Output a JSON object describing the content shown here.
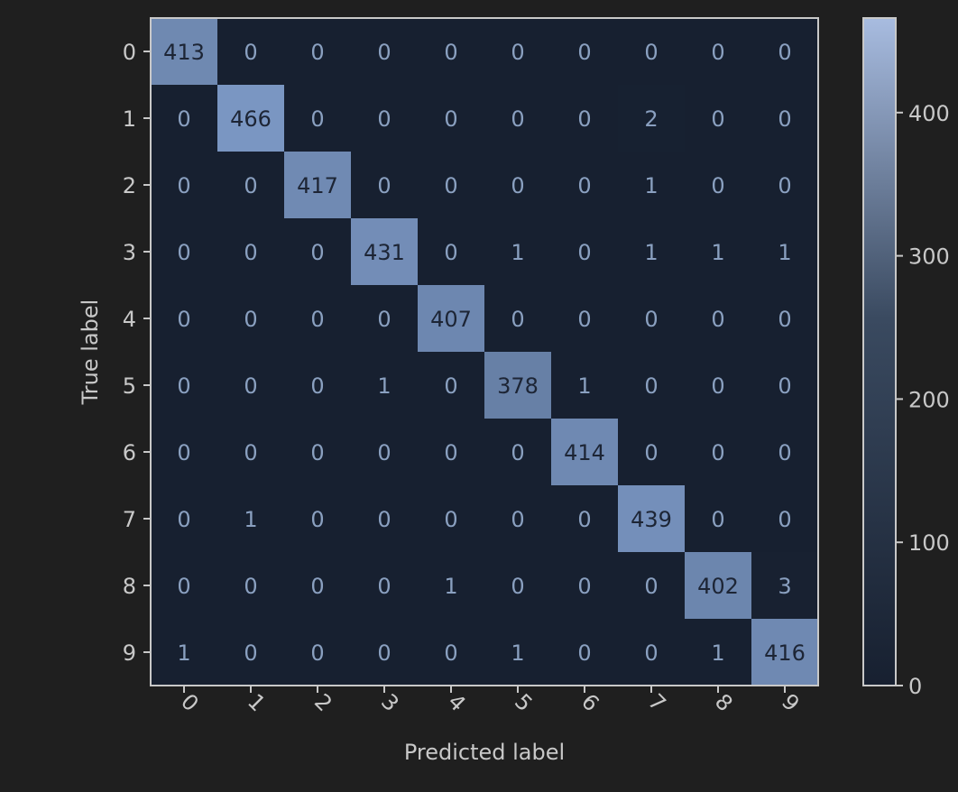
{
  "chart_data": {
    "type": "heatmap",
    "title": "",
    "xlabel": "Predicted label",
    "ylabel": "True label",
    "x_tick_labels": [
      "0",
      "1",
      "2",
      "3",
      "4",
      "5",
      "6",
      "7",
      "8",
      "9"
    ],
    "y_tick_labels": [
      "0",
      "1",
      "2",
      "3",
      "4",
      "5",
      "6",
      "7",
      "8",
      "9"
    ],
    "matrix": [
      [
        413,
        0,
        0,
        0,
        0,
        0,
        0,
        0,
        0,
        0
      ],
      [
        0,
        466,
        0,
        0,
        0,
        0,
        0,
        2,
        0,
        0
      ],
      [
        0,
        0,
        417,
        0,
        0,
        0,
        0,
        1,
        0,
        0
      ],
      [
        0,
        0,
        0,
        431,
        0,
        1,
        0,
        1,
        1,
        1
      ],
      [
        0,
        0,
        0,
        0,
        407,
        0,
        0,
        0,
        0,
        0
      ],
      [
        0,
        0,
        0,
        1,
        0,
        378,
        1,
        0,
        0,
        0
      ],
      [
        0,
        0,
        0,
        0,
        0,
        0,
        414,
        0,
        0,
        0
      ],
      [
        0,
        1,
        0,
        0,
        0,
        0,
        0,
        439,
        0,
        0
      ],
      [
        0,
        0,
        0,
        0,
        1,
        0,
        0,
        0,
        402,
        3
      ],
      [
        1,
        0,
        0,
        0,
        0,
        1,
        0,
        0,
        1,
        416
      ]
    ],
    "colorbar": {
      "min": 0,
      "max": 466,
      "ticks": [
        0,
        100,
        200,
        300,
        400
      ],
      "tick_labels": [
        "0",
        "100",
        "200",
        "300",
        "400"
      ]
    },
    "colors": {
      "low": "#172030",
      "high": "#7a96c2",
      "text_on_low": "#8aa0c0",
      "text_on_high": "#1d2535",
      "axis": "#c8c8c8",
      "background": "#1f1f1f"
    },
    "x_tick_rotation": "45deg",
    "grid": false
  }
}
